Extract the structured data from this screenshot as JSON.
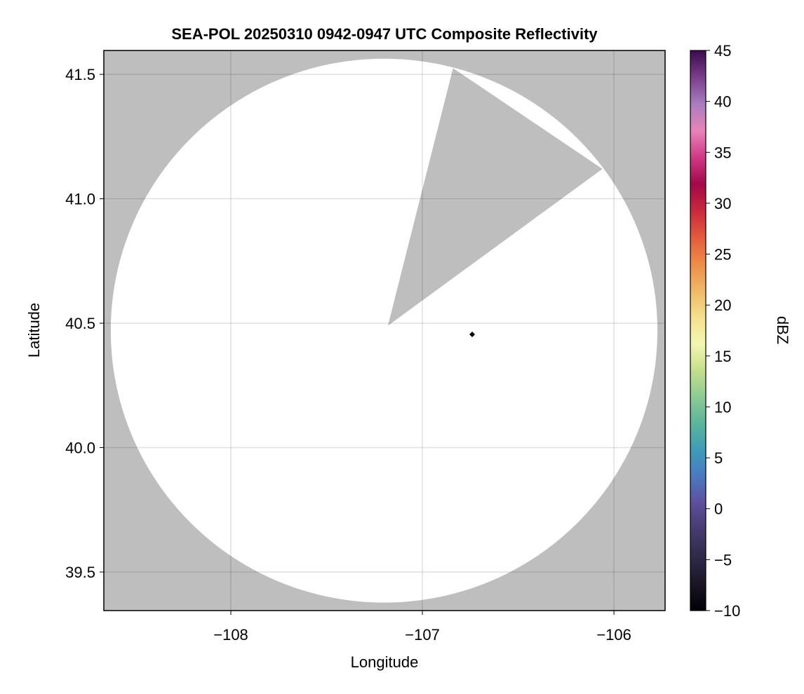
{
  "chart_data": {
    "type": "heatmap",
    "title": "SEA-POL 20250310 0942-0947 UTC Composite Reflectivity",
    "xlabel": "Longitude",
    "ylabel": "Latitude",
    "xlim": [
      -108.663,
      -105.733
    ],
    "ylim": [
      39.345,
      41.596
    ],
    "xticks": [
      -108,
      -107,
      -106
    ],
    "xtick_labels": [
      "−108",
      "−107",
      "−106"
    ],
    "yticks": [
      39.5,
      40.0,
      40.5,
      41.0,
      41.5
    ],
    "ytick_labels": [
      "39.5",
      "40.0",
      "40.5",
      "41.0",
      "41.5"
    ],
    "grid": true,
    "background_color": "#bebebe",
    "coverage_color": "#ffffff",
    "radar_coverage": {
      "center_lon": -107.2,
      "center_lat": 40.47,
      "radius_lon_deg": 1.427,
      "radius_lat_deg": 1.093
    },
    "blocked_sector": [
      [
        -107.18,
        40.49
      ],
      [
        -106.84,
        41.525
      ],
      [
        -106.06,
        41.12
      ]
    ],
    "marker": {
      "lon": -106.74,
      "lat": 40.455,
      "shape": "diamond",
      "color": "#000000"
    },
    "colorbar": {
      "label": "dBZ",
      "range": [
        -10,
        45
      ],
      "ticks": [
        -10,
        -5,
        0,
        5,
        10,
        15,
        20,
        25,
        30,
        35,
        40,
        45
      ],
      "tick_labels": [
        "−10",
        "−5",
        "0",
        "5",
        "10",
        "15",
        "20",
        "25",
        "30",
        "35",
        "40",
        "45"
      ],
      "colors": [
        "#000004",
        "#1a1626",
        "#2e2a48",
        "#453b6e",
        "#5e4e9c",
        "#4a78c0",
        "#3d9cb8",
        "#5bb49a",
        "#8ccb94",
        "#c4df8c",
        "#f4f7b0",
        "#f5e08c",
        "#f0b866",
        "#ee8c48",
        "#e45a3c",
        "#c8283e",
        "#a3084a",
        "#d03a84",
        "#e884b8",
        "#a87cc0",
        "#7a3e8a",
        "#3c0a4c"
      ]
    }
  }
}
